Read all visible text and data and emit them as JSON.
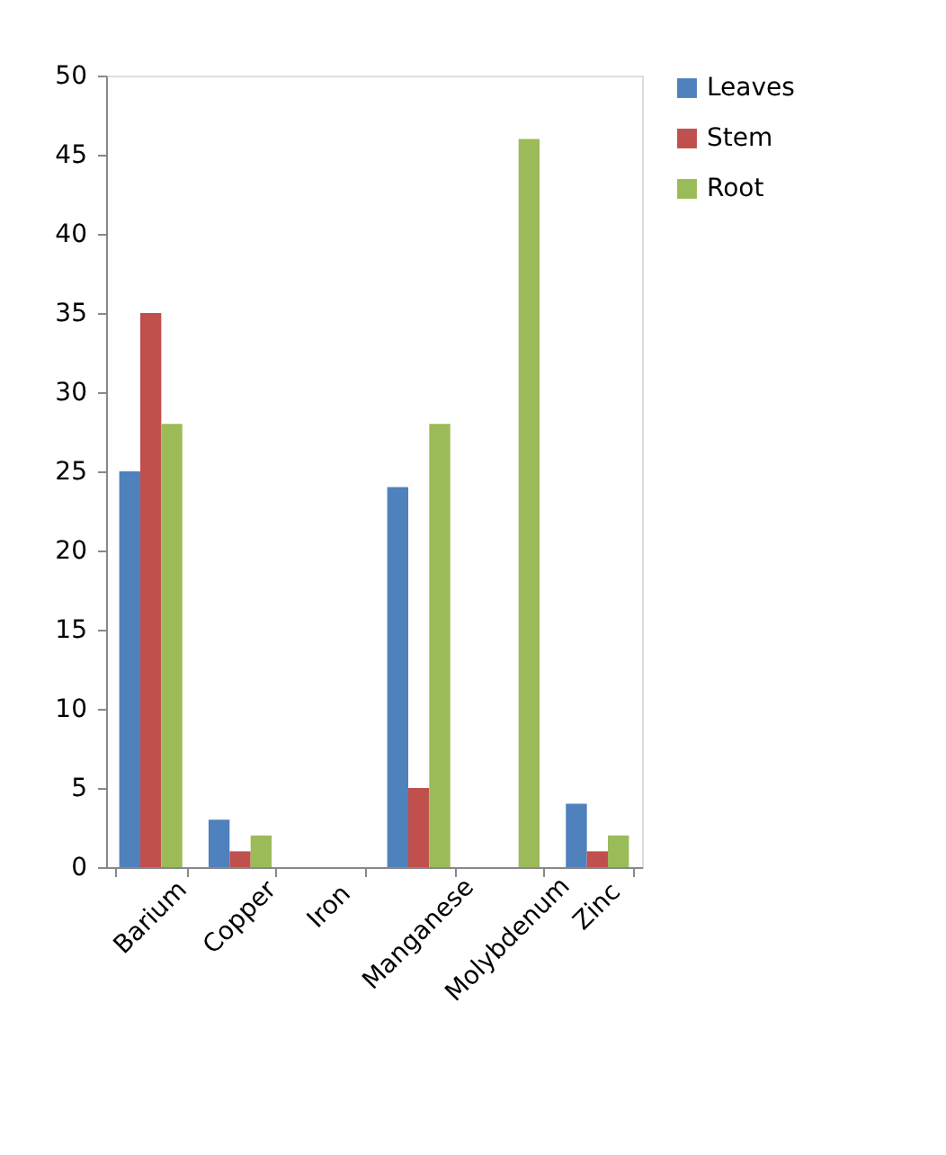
{
  "chart_data": {
    "type": "bar",
    "categories": [
      "Barium",
      "Copper",
      "Iron",
      "Manganese",
      "Molybdenum",
      "Zinc"
    ],
    "series": [
      {
        "name": "Leaves",
        "color": "#4f81bd",
        "values": [
          25,
          3,
          0,
          24,
          0,
          4
        ]
      },
      {
        "name": "Stem",
        "color": "#c0504d",
        "values": [
          35,
          1,
          0,
          5,
          0,
          1
        ]
      },
      {
        "name": "Root",
        "color": "#9bbb59",
        "values": [
          28,
          2,
          0,
          28,
          46,
          2
        ]
      }
    ],
    "ylim": [
      0,
      50
    ],
    "yticks": [
      0,
      5,
      10,
      15,
      20,
      25,
      30,
      35,
      40,
      45,
      50
    ],
    "grid": false,
    "legend": "right"
  }
}
